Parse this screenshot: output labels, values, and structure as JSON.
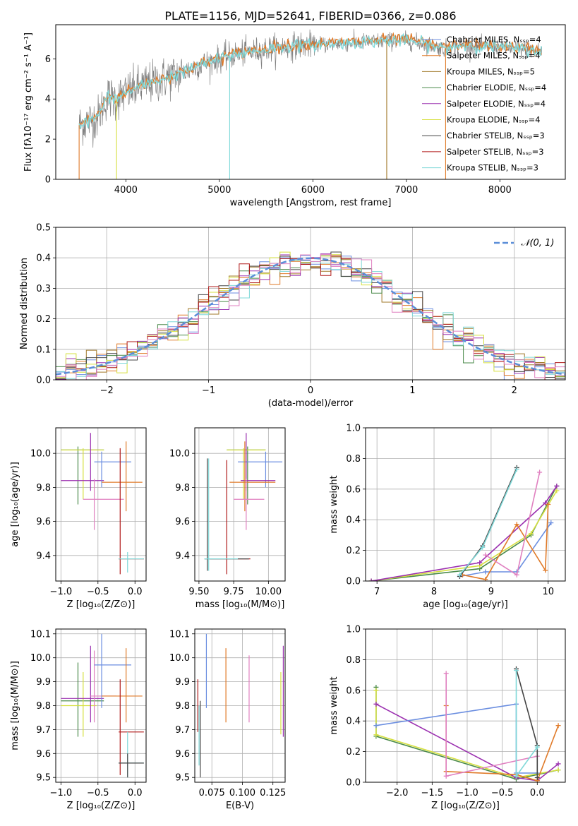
{
  "colors": {
    "Chabrier MILES": "#6b8ee0",
    "Salpeter MILES": "#e07b2a",
    "Kroupa MILES": "#a07828",
    "Chabrier ELODIE": "#4a8a4a",
    "Salpeter ELODIE": "#9b30b0",
    "Kroupa ELODIE": "#d6e040",
    "Chabrier STELIB": "#444444",
    "Salpeter STELIB": "#b01818",
    "Kroupa STELIB": "#7fd8d8",
    "pink": "#e080c0",
    "yellowgreen": "#c8e040",
    "dashed": "#5b8ed8"
  },
  "chart_data": [
    {
      "id": "spectrum",
      "type": "line",
      "title": "PLATE=1156, MJD=52641, FIBERID=0366, z=0.086",
      "xlabel": "wavelength [Angstrom, rest frame]",
      "ylabel": "Flux [fλ10⁻¹⁷ erg cm⁻² s⁻¹ A⁻¹]",
      "xlim": [
        3250,
        8700
      ],
      "ylim": [
        0,
        7.7
      ],
      "xticks": [
        "4000",
        "5000",
        "6000",
        "7000",
        "8000"
      ],
      "yticks": [
        "0",
        "2",
        "4",
        "6"
      ],
      "legend": [
        "Chabrier MILES, Nₛₛₚ=4",
        "Salpeter MILES, Nₛₛₚ=4",
        "Kroupa MILES, Nₛₛₚ=5",
        "Chabrier ELODIE, Nₛₛₚ=4",
        "Salpeter ELODIE, Nₛₛₚ=4",
        "Kroupa ELODIE, Nₛₛₚ=4",
        "Chabrier STELIB, Nₛₛₚ=3",
        "Salpeter STELIB, Nₛₛₚ=3",
        "Kroupa STELIB, Nₛₛₚ=3"
      ],
      "legend_placement": "right",
      "continuum": [
        [
          3500,
          2.7
        ],
        [
          3700,
          3.1
        ],
        [
          3800,
          4.1
        ],
        [
          3900,
          4.0
        ],
        [
          4000,
          4.3
        ],
        [
          4200,
          4.7
        ],
        [
          4400,
          5.0
        ],
        [
          4600,
          5.3
        ],
        [
          4800,
          5.7
        ],
        [
          5000,
          6.0
        ],
        [
          5200,
          6.25
        ],
        [
          5400,
          6.4
        ],
        [
          5600,
          6.55
        ],
        [
          5800,
          6.65
        ],
        [
          6000,
          6.7
        ],
        [
          6200,
          6.75
        ],
        [
          6400,
          6.8
        ],
        [
          6600,
          6.85
        ],
        [
          6800,
          6.9
        ],
        [
          7000,
          6.9
        ],
        [
          7200,
          6.75
        ],
        [
          7400,
          6.5
        ],
        [
          7600,
          6.7
        ],
        [
          7800,
          6.6
        ],
        [
          8000,
          6.6
        ],
        [
          8200,
          6.5
        ],
        [
          8450,
          6.4
        ]
      ],
      "drops": [
        [
          3500,
          0
        ],
        [
          3900,
          0
        ],
        [
          5110,
          0
        ],
        [
          6790,
          0
        ],
        [
          7420,
          0
        ]
      ]
    },
    {
      "id": "residuals",
      "type": "bar",
      "xlabel": "(data-model)/error",
      "ylabel": "Normed distribution",
      "xlim": [
        -2.5,
        2.5
      ],
      "ylim": [
        0,
        0.5
      ],
      "xticks": [
        "−2",
        "−1",
        "0",
        "1",
        "2"
      ],
      "yticks": [
        "0.0",
        "0.1",
        "0.2",
        "0.3",
        "0.4",
        "0.5"
      ],
      "legend": [
        "𝒩(0, 1)"
      ],
      "legend_placement": "top-right",
      "bin_width": 0.1
    },
    {
      "id": "age_Z",
      "type": "scatter",
      "xlabel": "Z [log₁₀(Z/Z⊙)]",
      "ylabel": "age  [log₁₀(age/yr)]",
      "xlim": [
        -1.07,
        0.15
      ],
      "ylim": [
        9.25,
        10.15
      ],
      "xticks": [
        "−1.0",
        "−0.5",
        "0.0"
      ],
      "yticks": [
        "9.4",
        "9.6",
        "9.8",
        "10.0"
      ],
      "points": [
        {
          "series": "Chabrier ELODIE",
          "x": -0.77,
          "y": 10.02,
          "xe": [
            -1.0,
            -0.42
          ],
          "ye": [
            9.7,
            10.04
          ]
        },
        {
          "series": "Kroupa ELODIE",
          "x": -0.7,
          "y": 10.02,
          "xe": [
            -1.0,
            -0.42
          ],
          "ye": [
            9.73,
            10.03
          ]
        },
        {
          "series": "Salpeter ELODIE",
          "x": -0.6,
          "y": 9.84,
          "xe": [
            -1.0,
            -0.42
          ],
          "ye": [
            9.78,
            10.12
          ]
        },
        {
          "series": "Chabrier MILES",
          "x": -0.45,
          "y": 9.95,
          "xe": [
            -0.55,
            -0.05
          ],
          "ye": [
            9.8,
            10.01
          ]
        },
        {
          "series": "pink",
          "x": -0.55,
          "y": 9.73,
          "xe": [
            -0.7,
            -0.15
          ],
          "ye": [
            9.55,
            9.85
          ]
        },
        {
          "series": "Salpeter MILES",
          "x": -0.12,
          "y": 9.83,
          "xe": [
            -0.45,
            0.1
          ],
          "ye": [
            9.66,
            10.07
          ]
        },
        {
          "series": "Salpeter STELIB",
          "x": -0.2,
          "y": 9.38,
          "xe": [
            -0.22,
            0.12
          ],
          "ye": [
            9.29,
            10.03
          ]
        },
        {
          "series": "Kroupa STELIB",
          "x": -0.1,
          "y": 9.38,
          "xe": [
            -0.22,
            0.12
          ],
          "ye": [
            9.3,
            9.42
          ]
        }
      ]
    },
    {
      "id": "age_mass",
      "type": "scatter",
      "xlabel": "mass [log₁₀(M/M⊙)]",
      "ylabel": "",
      "xlim": [
        9.47,
        10.12
      ],
      "ylim": [
        9.25,
        10.15
      ],
      "xticks": [
        "9.50",
        "9.75",
        "10.00"
      ],
      "yticks": [
        "9.4",
        "9.6",
        "9.8",
        "10.0"
      ],
      "points": [
        {
          "series": "Chabrier ELODIE",
          "x": 9.85,
          "y": 10.02,
          "xe": [
            9.7,
            9.98
          ],
          "ye": [
            9.7,
            10.04
          ]
        },
        {
          "series": "Kroupa ELODIE",
          "x": 9.82,
          "y": 10.02,
          "xe": [
            9.7,
            9.98
          ],
          "ye": [
            9.73,
            10.03
          ]
        },
        {
          "series": "Chabrier MILES",
          "x": 9.98,
          "y": 9.95,
          "xe": [
            9.78,
            10.1
          ],
          "ye": [
            9.8,
            10.01
          ]
        },
        {
          "series": "Salpeter ELODIE",
          "x": 9.84,
          "y": 9.84,
          "xe": [
            9.8,
            10.05
          ],
          "ye": [
            9.78,
            10.12
          ]
        },
        {
          "series": "Salpeter MILES",
          "x": 9.83,
          "y": 9.83,
          "xe": [
            9.72,
            10.05
          ],
          "ye": [
            9.66,
            10.07
          ]
        },
        {
          "series": "pink",
          "x": 9.84,
          "y": 9.73,
          "xe": [
            9.75,
            9.97
          ],
          "ye": [
            9.55,
            9.85
          ]
        },
        {
          "series": "Salpeter STELIB",
          "x": 9.7,
          "y": 9.38,
          "xe": [
            9.58,
            9.87
          ],
          "ye": [
            9.29,
            9.96
          ]
        },
        {
          "series": "Chabrier STELIB",
          "x": 9.56,
          "y": 9.38,
          "xe": [
            9.54,
            9.86
          ],
          "ye": [
            9.31,
            9.97
          ]
        },
        {
          "series": "Kroupa STELIB",
          "x": 9.57,
          "y": 9.38,
          "xe": [
            9.54,
            9.78
          ],
          "ye": [
            9.31,
            9.97
          ]
        }
      ]
    },
    {
      "id": "mw_age",
      "type": "line",
      "xlabel": "age  [log₁₀(age/yr)]",
      "ylabel": "mass weight",
      "xlim": [
        6.8,
        10.3
      ],
      "ylim": [
        0,
        1
      ],
      "xticks": [
        "7",
        "8",
        "9",
        "10"
      ],
      "yticks": [
        "0.0",
        "0.2",
        "0.4",
        "0.6",
        "0.8",
        "1.0"
      ],
      "series": [
        {
          "name": "Chabrier ELODIE",
          "points": [
            [
              6.9,
              0.0
            ],
            [
              8.8,
              0.08
            ],
            [
              9.7,
              0.3
            ],
            [
              10.15,
              0.62
            ]
          ]
        },
        {
          "name": "Kroupa ELODIE",
          "points": [
            [
              6.9,
              0.0
            ],
            [
              8.8,
              0.1
            ],
            [
              9.7,
              0.31
            ],
            [
              10.15,
              0.59
            ]
          ]
        },
        {
          "name": "Salpeter ELODIE",
          "points": [
            [
              6.9,
              0.0
            ],
            [
              8.8,
              0.12
            ],
            [
              9.95,
              0.51
            ],
            [
              10.15,
              0.62
            ]
          ]
        },
        {
          "name": "Chabrier MILES",
          "points": [
            [
              8.45,
              0.03
            ],
            [
              8.9,
              0.06
            ],
            [
              9.45,
              0.06
            ],
            [
              10.05,
              0.38
            ]
          ]
        },
        {
          "name": "Salpeter MILES",
          "points": [
            [
              8.5,
              0.04
            ],
            [
              8.9,
              0.01
            ],
            [
              9.45,
              0.37
            ],
            [
              9.95,
              0.07
            ],
            [
              10.0,
              0.5
            ]
          ]
        },
        {
          "name": "pink",
          "points": [
            [
              8.9,
              0.17
            ],
            [
              9.45,
              0.04
            ],
            [
              9.85,
              0.71
            ]
          ]
        },
        {
          "name": "Chabrier STELIB",
          "points": [
            [
              8.45,
              0.03
            ],
            [
              8.85,
              0.23
            ],
            [
              9.45,
              0.74
            ]
          ]
        },
        {
          "name": "Kroupa STELIB",
          "points": [
            [
              8.45,
              0.04
            ],
            [
              8.85,
              0.22
            ],
            [
              9.45,
              0.73
            ]
          ]
        }
      ]
    },
    {
      "id": "mass_Z",
      "type": "scatter",
      "xlabel": "Z [log₁₀(Z/Z⊙)]",
      "ylabel": "mass [log₁₀(M/M⊙)]",
      "xlim": [
        -1.07,
        0.15
      ],
      "ylim": [
        9.48,
        10.12
      ],
      "xticks": [
        "−1.0",
        "−0.5",
        "0.0"
      ],
      "yticks": [
        "9.5",
        "9.6",
        "9.7",
        "9.8",
        "9.9",
        "10.0",
        "10.1"
      ],
      "points": [
        {
          "series": "Chabrier ELODIE",
          "x": -0.77,
          "y": 9.82,
          "xe": [
            -1.0,
            -0.42
          ],
          "ye": [
            9.67,
            9.98
          ]
        },
        {
          "series": "Kroupa ELODIE",
          "x": -0.7,
          "y": 9.8,
          "xe": [
            -1.0,
            -0.52
          ],
          "ye": [
            9.67,
            9.94
          ]
        },
        {
          "series": "Salpeter ELODIE",
          "x": -0.6,
          "y": 9.83,
          "xe": [
            -1.0,
            -0.42
          ],
          "ye": [
            9.73,
            10.05
          ]
        },
        {
          "series": "pink",
          "x": -0.55,
          "y": 9.84,
          "xe": [
            -0.6,
            -0.25
          ],
          "ye": [
            9.73,
            10.03
          ]
        },
        {
          "series": "Chabrier MILES",
          "x": -0.45,
          "y": 9.97,
          "xe": [
            -0.55,
            -0.05
          ],
          "ye": [
            9.79,
            10.1
          ]
        },
        {
          "series": "Salpeter MILES",
          "x": -0.12,
          "y": 9.84,
          "xe": [
            -0.45,
            0.1
          ],
          "ye": [
            9.73,
            10.04
          ]
        },
        {
          "series": "Salpeter STELIB",
          "x": -0.2,
          "y": 9.69,
          "xe": [
            -0.22,
            0.12
          ],
          "ye": [
            9.51,
            9.91
          ]
        },
        {
          "series": "Kroupa STELIB",
          "x": -0.1,
          "y": 9.56,
          "xe": [
            -0.22,
            0.12
          ],
          "ye": [
            9.5,
            9.69
          ]
        },
        {
          "series": "Chabrier STELIB",
          "x": -0.1,
          "y": 9.56,
          "xe": [
            -0.22,
            0.12
          ],
          "ye": [
            9.5,
            9.6
          ]
        }
      ]
    },
    {
      "id": "mass_ebv",
      "type": "scatter",
      "xlabel": "E(B-V)",
      "ylabel": "",
      "xlim": [
        0.061,
        0.135
      ],
      "ylim": [
        9.48,
        10.12
      ],
      "xticks": [
        "0.075",
        "0.100",
        "0.125"
      ],
      "yticks": [
        "9.5",
        "9.6",
        "9.7",
        "9.8",
        "9.9",
        "10.0",
        "10.1"
      ],
      "points": [
        {
          "series": "Salpeter STELIB",
          "x": 0.0635,
          "ye": [
            9.69,
            9.91
          ]
        },
        {
          "series": "Kroupa STELIB",
          "x": 0.0645,
          "ye": [
            9.55,
            9.8
          ]
        },
        {
          "series": "Chabrier STELIB",
          "x": 0.0655,
          "ye": [
            9.5,
            9.82
          ]
        },
        {
          "series": "Chabrier MILES",
          "x": 0.0705,
          "ye": [
            9.79,
            10.1
          ]
        },
        {
          "series": "Salpeter MILES",
          "x": 0.0865,
          "ye": [
            9.73,
            10.04
          ]
        },
        {
          "series": "pink",
          "x": 0.1055,
          "ye": [
            9.73,
            10.01
          ]
        },
        {
          "series": "Kroupa ELODIE",
          "x": 0.1315,
          "ye": [
            9.68,
            9.94
          ]
        },
        {
          "series": "Salpeter ELODIE",
          "x": 0.1335,
          "ye": [
            9.67,
            10.05
          ]
        }
      ]
    },
    {
      "id": "mw_Z",
      "type": "line",
      "xlabel": "Z [log₁₀(Z/Z⊙)]",
      "ylabel": "mass weight",
      "xlim": [
        -2.45,
        0.4
      ],
      "ylim": [
        0,
        1
      ],
      "xticks": [
        "−2.0",
        "−1.5",
        "−1.0",
        "−0.5",
        "0.0"
      ],
      "yticks": [
        "0.0",
        "0.2",
        "0.4",
        "0.6",
        "0.8",
        "1.0"
      ],
      "series": [
        {
          "name": "Chabrier ELODIE",
          "points": [
            [
              -2.3,
              0.62
            ],
            [
              -2.3,
              0.3
            ],
            [
              -0.3,
              0.02
            ],
            [
              0.3,
              0.08
            ]
          ]
        },
        {
          "name": "Kroupa ELODIE",
          "points": [
            [
              -2.3,
              0.6
            ],
            [
              -2.3,
              0.31
            ],
            [
              -0.3,
              0.03
            ],
            [
              0.3,
              0.08
            ]
          ]
        },
        {
          "name": "Salpeter ELODIE",
          "points": [
            [
              -2.3,
              0.51
            ],
            [
              -0.3,
              0.03
            ],
            [
              0.0,
              0.01
            ],
            [
              0.3,
              0.12
            ]
          ]
        },
        {
          "name": "Chabrier MILES",
          "points": [
            [
              -2.3,
              0.37
            ],
            [
              -0.3,
              0.51
            ],
            [
              -0.3,
              0.06
            ],
            [
              0.0,
              0.06
            ]
          ]
        },
        {
          "name": "Salpeter MILES",
          "points": [
            [
              -1.3,
              0.5
            ],
            [
              -1.3,
              0.07
            ],
            [
              -0.3,
              0.05
            ],
            [
              0.0,
              0.01
            ],
            [
              0.3,
              0.37
            ]
          ]
        },
        {
          "name": "pink",
          "points": [
            [
              -1.3,
              0.71
            ],
            [
              -1.3,
              0.04
            ],
            [
              0.0,
              0.17
            ]
          ]
        },
        {
          "name": "Chabrier STELIB",
          "points": [
            [
              -0.3,
              0.74
            ],
            [
              0.0,
              0.24
            ],
            [
              0.0,
              0.03
            ]
          ]
        },
        {
          "name": "Kroupa STELIB",
          "points": [
            [
              -0.3,
              0.73
            ],
            [
              -0.3,
              0.04
            ],
            [
              0.0,
              0.23
            ]
          ]
        }
      ]
    }
  ]
}
